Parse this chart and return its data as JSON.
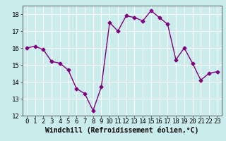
{
  "x": [
    0,
    1,
    2,
    3,
    4,
    5,
    6,
    7,
    8,
    9,
    10,
    11,
    12,
    13,
    14,
    15,
    16,
    17,
    18,
    19,
    20,
    21,
    22,
    23
  ],
  "y": [
    16.0,
    16.1,
    15.9,
    15.2,
    15.1,
    14.7,
    13.6,
    13.3,
    12.3,
    13.7,
    17.5,
    17.0,
    17.9,
    17.8,
    17.6,
    18.2,
    17.8,
    17.4,
    15.3,
    16.0,
    15.1,
    14.1,
    14.5,
    14.6
  ],
  "line_color": "#800080",
  "marker": "D",
  "markersize": 2.5,
  "linewidth": 1,
  "background_color": "#cbecec",
  "grid_color": "#ffffff",
  "xlabel": "Windchill (Refroidissement éolien,°C)",
  "xlabel_fontsize": 7,
  "tick_fontsize": 6.5,
  "ylim": [
    12,
    18.5
  ],
  "xlim": [
    -0.5,
    23.5
  ],
  "yticks": [
    12,
    13,
    14,
    15,
    16,
    17,
    18
  ],
  "xticks": [
    0,
    1,
    2,
    3,
    4,
    5,
    6,
    7,
    8,
    9,
    10,
    11,
    12,
    13,
    14,
    15,
    16,
    17,
    18,
    19,
    20,
    21,
    22,
    23
  ]
}
